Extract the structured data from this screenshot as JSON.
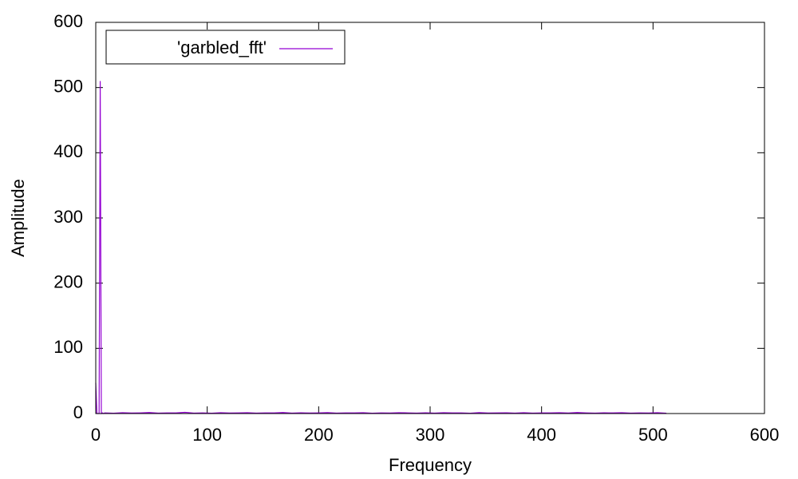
{
  "chart_data": {
    "type": "line",
    "x_label": "Frequency",
    "y_label": "Amplitude",
    "x": [
      0,
      1,
      2,
      3,
      4,
      5,
      6,
      7,
      8,
      16,
      24,
      32,
      40,
      48,
      56,
      64,
      72,
      80,
      88,
      96,
      104,
      112,
      120,
      128,
      136,
      144,
      152,
      160,
      168,
      176,
      184,
      192,
      200,
      208,
      216,
      224,
      232,
      240,
      248,
      256,
      264,
      272,
      280,
      288,
      296,
      304,
      312,
      320,
      328,
      336,
      344,
      352,
      360,
      368,
      376,
      384,
      392,
      400,
      408,
      416,
      424,
      432,
      440,
      448,
      456,
      464,
      472,
      480,
      488,
      496,
      504,
      512
    ],
    "series": [
      {
        "name": "'garbled_fft'",
        "color": "#9400d3",
        "values": [
          47,
          0,
          0,
          0,
          510,
          0,
          1,
          0,
          1,
          0.5,
          1.2,
          0.8,
          1,
          1.5,
          0.6,
          1,
          0.9,
          1.8,
          0.7,
          1,
          0.5,
          1.2,
          0.8,
          1,
          1.3,
          0.6,
          1,
          0.9,
          1.5,
          0.7,
          1.1,
          0.8,
          1,
          1.4,
          0.6,
          1,
          0.9,
          1.2,
          0.5,
          1,
          0.8,
          1.3,
          1,
          0.7,
          1.1,
          0.6,
          1.2,
          0.9,
          1,
          0.5,
          1.4,
          0.8,
          1,
          1.1,
          0.7,
          1.3,
          0.6,
          1,
          0.9,
          1.2,
          0.8,
          1.5,
          1,
          0.7,
          1.1,
          0.9,
          1.3,
          0.6,
          1,
          0.8,
          1.2,
          0.5
        ]
      }
    ],
    "xlim": [
      0,
      600
    ],
    "ylim": [
      0,
      600
    ],
    "xticks": [
      0,
      100,
      200,
      300,
      400,
      500,
      600
    ],
    "yticks": [
      0,
      100,
      200,
      300,
      400,
      500,
      600
    ],
    "legend": "top-left"
  }
}
